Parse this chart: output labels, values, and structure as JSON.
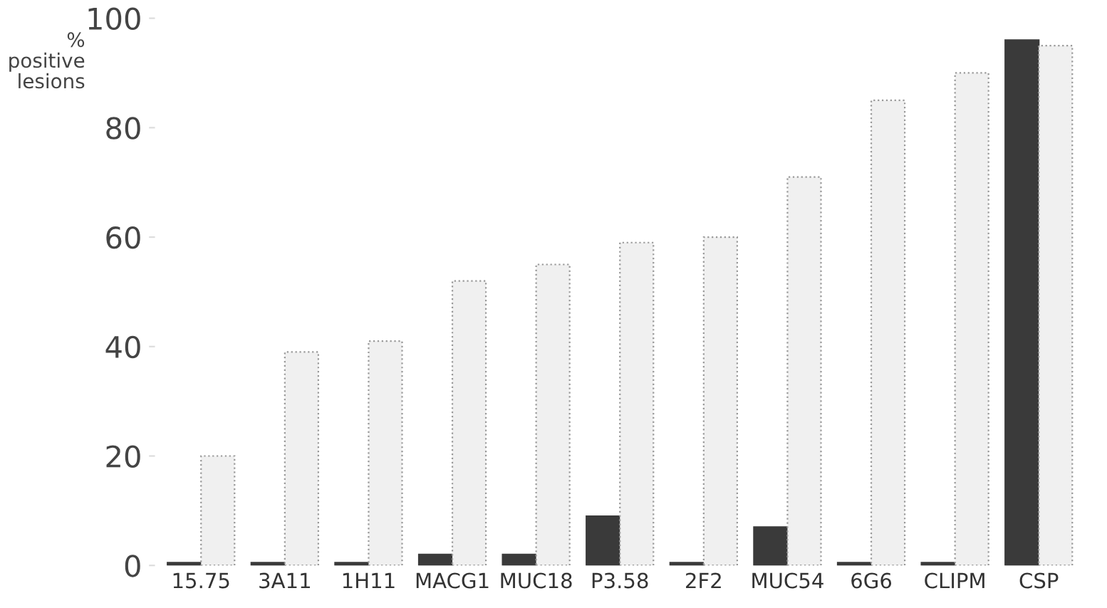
{
  "chart_data": {
    "type": "bar",
    "ylabel": "% positive lesions",
    "categories": [
      "15.75",
      "3A11",
      "1H11",
      "MACG1",
      "MUC18",
      "P3.58",
      "2F2",
      "MUC54",
      "6G6",
      "CLIPM",
      "CSP"
    ],
    "series": [
      {
        "color": "#3a3a3a",
        "values": [
          0.5,
          0.5,
          0.5,
          2,
          2,
          9,
          0.5,
          7,
          0.5,
          0.5,
          96
        ]
      },
      {
        "color": "#f0f0f0",
        "values": [
          20,
          39,
          41,
          52,
          55,
          59,
          60,
          71,
          85,
          90,
          95
        ]
      }
    ],
    "ylim": [
      0,
      100
    ],
    "yticks": [
      0,
      20,
      40,
      60,
      80,
      100
    ],
    "grid": false
  }
}
